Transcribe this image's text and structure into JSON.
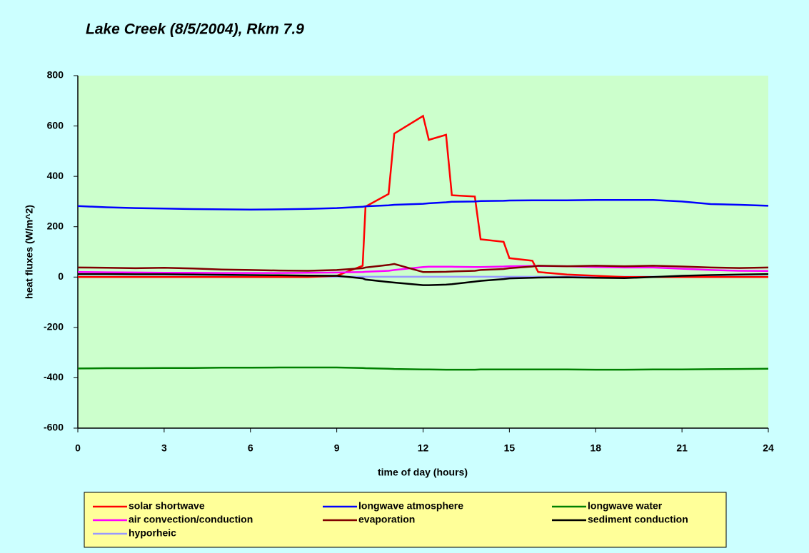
{
  "chart_data": {
    "type": "line",
    "title": "Lake Creek (8/5/2004), Rkm 7.9",
    "x_label": "time of day (hours)",
    "y_label": "heat fluxes (W/m^2)",
    "x": [
      0,
      1,
      2,
      3,
      4,
      5,
      6,
      7,
      8,
      9,
      9.9,
      10,
      10.8,
      11,
      12,
      12.2,
      12.8,
      13,
      13.8,
      14,
      14.8,
      15,
      15.8,
      16,
      17,
      18,
      19,
      20,
      21,
      22,
      23,
      24
    ],
    "xlim": [
      0,
      24
    ],
    "xticks": [
      0,
      3,
      6,
      9,
      12,
      15,
      18,
      21,
      24
    ],
    "ylim": [
      -600,
      800
    ],
    "yticks": [
      -600,
      -400,
      -200,
      0,
      200,
      400,
      600,
      800
    ],
    "grid": false,
    "series": [
      {
        "name": "solar shortwave",
        "color": "#ff0000",
        "values": [
          0,
          0,
          0,
          0,
          0,
          0,
          0,
          0,
          0,
          5,
          45,
          280,
          330,
          570,
          640,
          545,
          565,
          325,
          320,
          150,
          140,
          75,
          65,
          20,
          10,
          5,
          0,
          0,
          0,
          0,
          0,
          0
        ]
      },
      {
        "name": "longwave atmosphere",
        "color": "#0000ff",
        "values": [
          282,
          277,
          274,
          272,
          270,
          269,
          268,
          269,
          271,
          274,
          279,
          281,
          285,
          287,
          291,
          293,
          297,
          299,
          300,
          302,
          303,
          304,
          305,
          305,
          305,
          306,
          306,
          306,
          300,
          290,
          287,
          283
        ]
      },
      {
        "name": "longwave water",
        "color": "#008000",
        "values": [
          -363,
          -362,
          -362,
          -361,
          -361,
          -360,
          -360,
          -359,
          -359,
          -359,
          -361,
          -362,
          -364,
          -365,
          -367,
          -367,
          -368,
          -368,
          -368,
          -367,
          -367,
          -367,
          -367,
          -367,
          -367,
          -368,
          -368,
          -367,
          -367,
          -366,
          -365,
          -364
        ]
      },
      {
        "name": "air convection/conduction",
        "color": "#ff00ff",
        "values": [
          20,
          19,
          18,
          17,
          17,
          16,
          16,
          16,
          17,
          18,
          20,
          21,
          25,
          28,
          40,
          41,
          41,
          41,
          40,
          40,
          42,
          43,
          44,
          44,
          43,
          40,
          38,
          38,
          33,
          28,
          25,
          24
        ]
      },
      {
        "name": "evaporation",
        "color": "#800000",
        "values": [
          38,
          37,
          35,
          37,
          34,
          30,
          28,
          26,
          25,
          28,
          35,
          38,
          48,
          52,
          20,
          20,
          21,
          22,
          25,
          28,
          32,
          35,
          42,
          45,
          43,
          45,
          43,
          45,
          42,
          38,
          36,
          38
        ]
      },
      {
        "name": "sediment conduction",
        "color": "#000000",
        "values": [
          12,
          12,
          11,
          11,
          10,
          9,
          8,
          7,
          6,
          5,
          -5,
          -10,
          -20,
          -22,
          -32,
          -32,
          -30,
          -28,
          -18,
          -15,
          -8,
          -5,
          -3,
          -2,
          -1,
          -3,
          -4,
          0,
          5,
          8,
          10,
          12
        ]
      },
      {
        "name": "hyporheic",
        "color": "#9999ff",
        "values": [
          1,
          1,
          1,
          1,
          1,
          1,
          1,
          1,
          1,
          1,
          1,
          1,
          1,
          1,
          1,
          1,
          1,
          1,
          1,
          1,
          1,
          1,
          1,
          1,
          1,
          1,
          1,
          1,
          1,
          1,
          1,
          1
        ]
      }
    ]
  }
}
